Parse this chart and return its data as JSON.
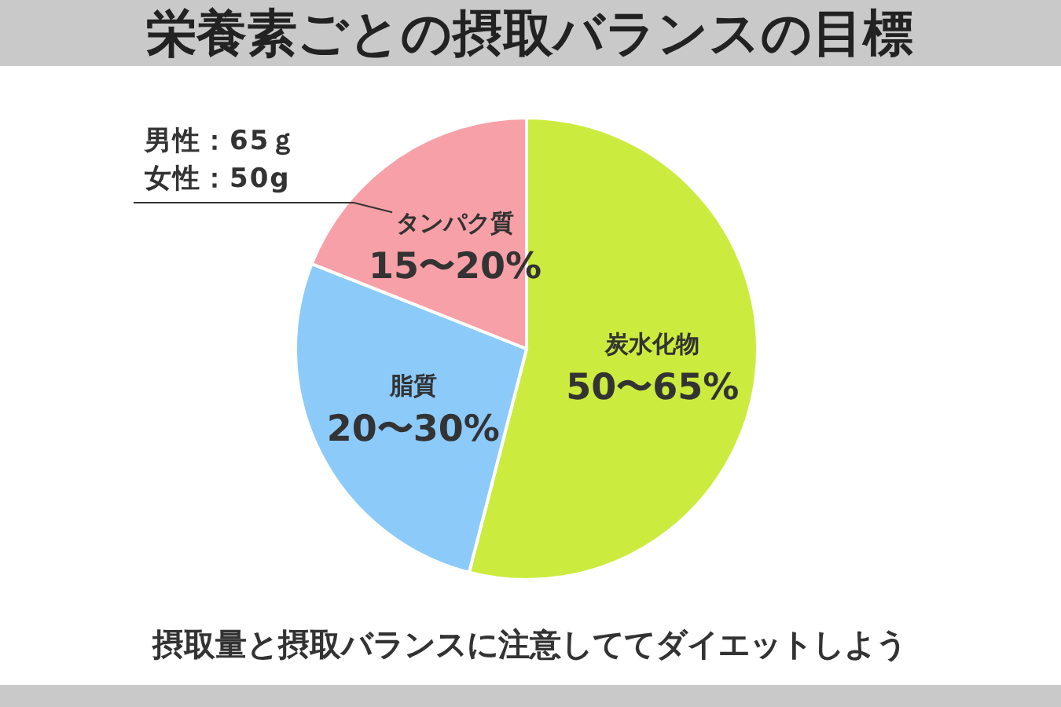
{
  "chart_data": {
    "type": "pie",
    "title": "栄養素ごとの摂取バランスの目標",
    "categories": [
      "炭水化物",
      "脂質",
      "タンパク質"
    ],
    "values": [
      54,
      27,
      19
    ],
    "colors": [
      "#cbec3e",
      "#8ccafa",
      "#f7a0a7"
    ],
    "annotations": [
      {
        "text": "50〜65%",
        "x": "炭水化物"
      },
      {
        "text": "20〜30%",
        "x": "脂質"
      },
      {
        "text": "15〜20%",
        "x": "タンパク質"
      },
      {
        "text": "男性：65ｇ",
        "x": "タンパク質"
      },
      {
        "text": "女性：50g",
        "x": "タンパク質"
      },
      "摂取量と摂取バランスに注意しててダイエットしよう"
    ]
  }
}
